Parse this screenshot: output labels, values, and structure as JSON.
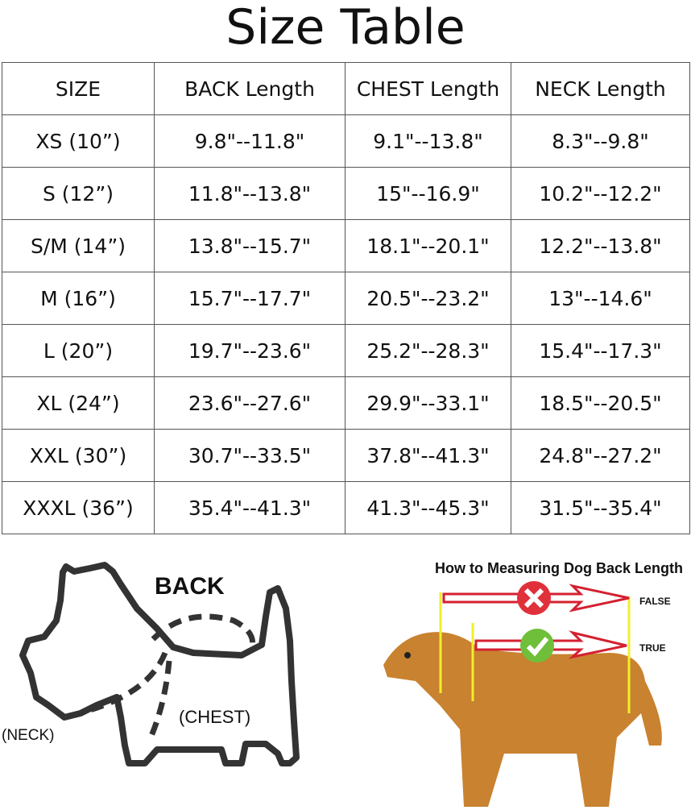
{
  "title": "Size Table",
  "table": {
    "headers": [
      "SIZE",
      "BACK Length",
      "CHEST Length",
      "NECK Length"
    ],
    "rows": [
      [
        "XS (10”)",
        "9.8\"--11.8\"",
        "9.1\"--13.8\"",
        "8.3\"--9.8\""
      ],
      [
        "S (12”)",
        "11.8\"--13.8\"",
        "15\"--16.9\"",
        "10.2\"--12.2\""
      ],
      [
        "S/M (14”)",
        "13.8\"--15.7\"",
        "18.1\"--20.1\"",
        "12.2\"--13.8\""
      ],
      [
        "M (16”)",
        "15.7\"--17.7\"",
        "20.5\"--23.2\"",
        "13\"--14.6\""
      ],
      [
        "L (20”)",
        "19.7\"--23.6\"",
        "25.2\"--28.3\"",
        "15.4\"--17.3\""
      ],
      [
        "XL (24”)",
        "23.6\"--27.6\"",
        "29.9\"--33.1\"",
        "18.5\"--20.5\""
      ],
      [
        "XXL (30”)",
        "30.7\"--33.5\"",
        "37.8\"--41.3\"",
        "24.8\"--27.2\""
      ],
      [
        "XXXL (36”)",
        "35.4\"--41.3\"",
        "41.3\"--45.3\"",
        "31.5\"--35.4\""
      ]
    ]
  },
  "diagram": {
    "back": "BACK",
    "chest": "(CHEST)",
    "neck": "(NECK)"
  },
  "photo": {
    "heading": "How to Measuring Dog Back Length",
    "false_label": "FALSE",
    "true_label": "TRUE",
    "colors": {
      "arrow": "#d42030",
      "wrong": "#e0303a",
      "right": "#6fbf3a",
      "guide": "#f2ee2a",
      "dog": "#c9822f"
    }
  }
}
